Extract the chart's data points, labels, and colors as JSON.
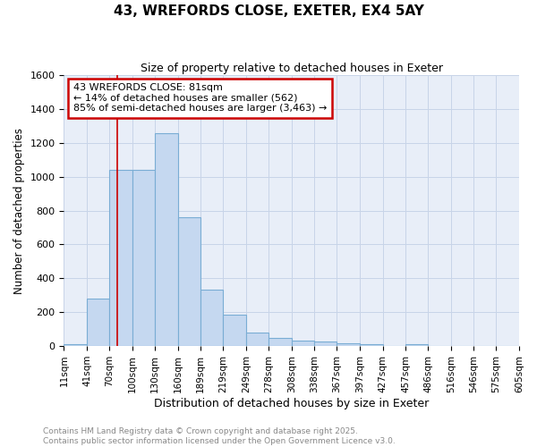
{
  "title1": "43, WREFORDS CLOSE, EXETER, EX4 5AY",
  "title2": "Size of property relative to detached houses in Exeter",
  "xlabel": "Distribution of detached houses by size in Exeter",
  "ylabel": "Number of detached properties",
  "bin_labels": [
    "11sqm",
    "41sqm",
    "70sqm",
    "100sqm",
    "130sqm",
    "160sqm",
    "189sqm",
    "219sqm",
    "249sqm",
    "278sqm",
    "308sqm",
    "338sqm",
    "367sqm",
    "397sqm",
    "427sqm",
    "457sqm",
    "486sqm",
    "516sqm",
    "546sqm",
    "575sqm",
    "605sqm"
  ],
  "bin_edges": [
    11,
    41,
    70,
    100,
    130,
    160,
    189,
    219,
    249,
    278,
    308,
    338,
    367,
    397,
    427,
    457,
    486,
    516,
    546,
    575,
    605
  ],
  "bar_heights": [
    10,
    280,
    1040,
    1040,
    1260,
    760,
    335,
    185,
    80,
    50,
    30,
    25,
    15,
    10,
    0,
    10,
    0,
    0,
    0,
    0,
    10
  ],
  "bar_color": "#c5d8f0",
  "bar_edge_color": "#7aadd4",
  "plot_bg_color": "#e8eef8",
  "fig_bg_color": "#ffffff",
  "grid_color": "#c8d4e8",
  "red_line_x": 81,
  "annotation_text": "43 WREFORDS CLOSE: 81sqm\n← 14% of detached houses are smaller (562)\n85% of semi-detached houses are larger (3,463) →",
  "annotation_box_color": "#ffffff",
  "annotation_box_edge_color": "#cc0000",
  "ylim": [
    0,
    1600
  ],
  "yticks": [
    0,
    200,
    400,
    600,
    800,
    1000,
    1200,
    1400,
    1600
  ],
  "footer_text": "Contains HM Land Registry data © Crown copyright and database right 2025.\nContains public sector information licensed under the Open Government Licence v3.0.",
  "footer_color": "#888888"
}
